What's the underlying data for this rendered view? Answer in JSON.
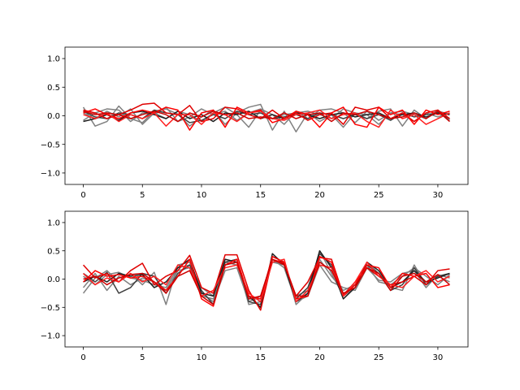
{
  "chart_data": [
    {
      "type": "line",
      "ylim": [
        -1.2,
        1.2
      ],
      "xlim": [
        -1.55,
        32.55
      ],
      "xticks": [
        0,
        5,
        10,
        15,
        20,
        25,
        30
      ],
      "yticks": [
        -1.0,
        -0.5,
        0.0,
        0.5,
        1.0
      ],
      "ytick_labels": [
        "−1.0",
        "−0.5",
        "0.0",
        "0.5",
        "1.0"
      ],
      "grid": false,
      "x": [
        0,
        1,
        2,
        3,
        4,
        5,
        6,
        7,
        8,
        9,
        10,
        11,
        12,
        13,
        14,
        15,
        16,
        17,
        18,
        19,
        20,
        21,
        22,
        23,
        24,
        25,
        26,
        27,
        28,
        29,
        30,
        31
      ],
      "series": [
        {
          "color": "#808080",
          "values": [
            0.15,
            -0.18,
            -0.1,
            0.17,
            -0.05,
            -0.12,
            0.08,
            0.12,
            0.03,
            -0.18,
            -0.02,
            0.1,
            -0.15,
            0.05,
            0.15,
            0.2,
            -0.25,
            0.08,
            -0.28,
            0.05,
            -0.1,
            0.02,
            -0.2,
            0.05,
            -0.05,
            0.08,
            0.12,
            -0.18,
            0.1,
            -0.05,
            0.08,
            0.03
          ]
        },
        {
          "color": "#808080",
          "values": [
            -0.08,
            0.05,
            0.12,
            0.1,
            -0.1,
            0.05,
            0.02,
            0.15,
            -0.1,
            -0.02,
            0.12,
            0.02,
            0.08,
            -0.08,
            0.05,
            0.12,
            0.02,
            -0.15,
            0.08,
            -0.05,
            0.1,
            0.12,
            0.05,
            -0.12,
            0.08,
            -0.08,
            0.05,
            0.02,
            -0.1,
            0.05,
            -0.02,
            0.05
          ]
        },
        {
          "color": "#808080",
          "values": [
            0.05,
            -0.05,
            0.08,
            -0.02,
            0.12,
            -0.15,
            0.05,
            -0.05,
            0.08,
            0.02,
            -0.1,
            0.05,
            0.15,
            0.02,
            -0.2,
            0.1,
            -0.05,
            0.02,
            0.05,
            0.08,
            0.02,
            -0.05,
            0.12,
            0.05,
            0.02,
            -0.15,
            0.05,
            0.08,
            0.02,
            -0.05,
            0.1,
            -0.08
          ]
        },
        {
          "color": "#404040",
          "values": [
            0.08,
            -0.02,
            -0.05,
            0.05,
            0.02,
            -0.05,
            0.1,
            0.05,
            0.02,
            -0.12,
            -0.08,
            0.02,
            -0.05,
            0.08,
            0.02,
            0.05,
            -0.05,
            -0.02,
            0.02,
            -0.05,
            0.05,
            0.02,
            -0.05,
            0.02,
            -0.05,
            0.02,
            -0.08,
            0.05,
            -0.02,
            0.02,
            0.05,
            -0.05
          ]
        },
        {
          "color": "#202020",
          "values": [
            -0.1,
            -0.05,
            0.02,
            -0.08,
            0.05,
            0.08,
            0.02,
            -0.05,
            0.08,
            -0.05,
            0.02,
            -0.1,
            0.05,
            0.02,
            0.08,
            -0.05,
            0.02,
            -0.05,
            0.05,
            0.02,
            -0.05,
            0.02,
            0.05,
            -0.02,
            0.02,
            0.05,
            -0.05,
            0.02,
            0.05,
            -0.02,
            0.05,
            0.02
          ]
        },
        {
          "color": "#e00000",
          "values": [
            0.1,
            0.05,
            -0.05,
            0.02,
            0.1,
            0.2,
            0.22,
            0.05,
            0.02,
            0.18,
            -0.1,
            -0.05,
            0.15,
            0.12,
            0.02,
            -0.05,
            0.1,
            -0.05,
            0.05,
            -0.08,
            0.02,
            0.05,
            -0.15,
            0.15,
            0.1,
            0.15,
            -0.05,
            0.05,
            -0.1,
            0.05,
            0.1,
            -0.05
          ]
        },
        {
          "color": "#ff0000",
          "values": [
            0.05,
            0.12,
            0.02,
            -0.05,
            0.05,
            0.1,
            0.05,
            0.15,
            0.1,
            -0.25,
            0.05,
            0.1,
            -0.2,
            0.15,
            0.05,
            0.1,
            -0.12,
            -0.05,
            0.08,
            0.02,
            -0.2,
            0.05,
            0.15,
            -0.15,
            -0.2,
            0.15,
            0.02,
            0.1,
            -0.15,
            0.1,
            0.02,
            0.08
          ]
        },
        {
          "color": "#ff2020",
          "values": [
            0.02,
            -0.05,
            0.05,
            -0.1,
            0.02,
            -0.05,
            0.05,
            -0.18,
            0.02,
            0.02,
            -0.15,
            0.05,
            0.02,
            -0.1,
            0.05,
            0.08,
            -0.05,
            -0.08,
            0.02,
            0.05,
            0.1,
            -0.05,
            0.02,
            0.05,
            -0.1,
            -0.2,
            0.1,
            -0.05,
            0.02,
            -0.15,
            -0.05,
            0.05
          ]
        },
        {
          "color": "#cc0000",
          "values": [
            0.08,
            0.02,
            0.05,
            0.02,
            -0.05,
            0.02,
            0.08,
            0.02,
            -0.1,
            0.05,
            -0.02,
            0.08,
            0.02,
            0.05,
            -0.05,
            -0.02,
            -0.05,
            0.05,
            -0.05,
            0.02,
            0.05,
            -0.1,
            0.05,
            0.02,
            0.08,
            0.02,
            -0.05,
            -0.02,
            0.05,
            -0.05,
            0.08,
            -0.1
          ]
        }
      ]
    },
    {
      "type": "line",
      "ylim": [
        -1.2,
        1.2
      ],
      "xlim": [
        -1.55,
        32.55
      ],
      "xticks": [
        0,
        5,
        10,
        15,
        20,
        25,
        30
      ],
      "yticks": [
        -1.0,
        -0.5,
        0.0,
        0.5,
        1.0
      ],
      "ytick_labels": [
        "−1.0",
        "−0.5",
        "0.0",
        "0.5",
        "1.0"
      ],
      "grid": false,
      "x": [
        0,
        1,
        2,
        3,
        4,
        5,
        6,
        7,
        8,
        9,
        10,
        11,
        12,
        13,
        14,
        15,
        16,
        17,
        18,
        19,
        20,
        21,
        22,
        23,
        24,
        25,
        26,
        27,
        28,
        29,
        30,
        31
      ],
      "series": [
        {
          "color": "#808080",
          "values": [
            -0.25,
            0.02,
            0.15,
            -0.05,
            0.1,
            -0.1,
            0.12,
            -0.45,
            0.25,
            0.3,
            -0.3,
            -0.35,
            0.25,
            0.3,
            -0.45,
            -0.4,
            0.4,
            0.3,
            -0.45,
            -0.25,
            0.5,
            0.1,
            -0.3,
            -0.15,
            0.3,
            0.1,
            -0.15,
            -0.2,
            0.25,
            -0.1,
            0.05,
            -0.05
          ]
        },
        {
          "color": "#808080",
          "values": [
            0.05,
            -0.1,
            0.08,
            0.12,
            0.02,
            -0.02,
            -0.1,
            -0.15,
            0.2,
            0.25,
            -0.15,
            -0.3,
            0.3,
            0.25,
            -0.35,
            -0.35,
            0.3,
            0.25,
            -0.3,
            -0.2,
            0.35,
            0.05,
            -0.2,
            -0.1,
            0.25,
            -0.05,
            -0.1,
            0.05,
            0.2,
            0.05,
            -0.1,
            0.08
          ]
        },
        {
          "color": "#808080",
          "values": [
            -0.15,
            0.1,
            -0.2,
            0.05,
            -0.1,
            0.02,
            -0.05,
            -0.2,
            0.15,
            0.2,
            -0.25,
            -0.4,
            0.15,
            0.2,
            -0.4,
            -0.3,
            0.35,
            0.2,
            -0.4,
            -0.3,
            0.25,
            -0.05,
            -0.15,
            -0.2,
            0.2,
            -0.02,
            -0.05,
            0.1,
            0.15,
            -0.15,
            0.08,
            0.02
          ]
        },
        {
          "color": "#404040",
          "values": [
            0.1,
            -0.05,
            0.12,
            -0.25,
            -0.15,
            0.1,
            0.05,
            -0.25,
            0.1,
            0.25,
            -0.2,
            -0.45,
            0.3,
            0.35,
            -0.4,
            -0.45,
            0.4,
            0.3,
            -0.35,
            -0.15,
            0.45,
            0.25,
            -0.3,
            -0.1,
            0.25,
            0.1,
            -0.2,
            -0.1,
            0.2,
            -0.1,
            0.05,
            0.1
          ]
        },
        {
          "color": "#202020",
          "values": [
            -0.05,
            0.05,
            -0.05,
            0.1,
            0.05,
            0.08,
            -0.15,
            -0.05,
            0.2,
            0.35,
            -0.25,
            -0.3,
            0.35,
            0.3,
            -0.3,
            -0.5,
            0.45,
            0.25,
            -0.4,
            -0.25,
            0.5,
            0.2,
            -0.35,
            -0.15,
            0.3,
            0.15,
            -0.15,
            -0.05,
            0.15,
            -0.05,
            0.02,
            0.1
          ]
        },
        {
          "color": "#e00000",
          "values": [
            0.25,
            0.02,
            0.1,
            -0.05,
            0.15,
            0.28,
            -0.1,
            0.05,
            0.15,
            0.42,
            -0.15,
            -0.25,
            0.43,
            0.43,
            -0.2,
            -0.55,
            0.35,
            0.28,
            -0.3,
            -0.05,
            0.38,
            0.35,
            -0.28,
            -0.05,
            0.2,
            0.05,
            -0.1,
            -0.05,
            0.05,
            -0.1,
            0.15,
            0.18
          ]
        },
        {
          "color": "#ff0000",
          "values": [
            -0.05,
            0.15,
            0.05,
            0.08,
            0.02,
            0.05,
            -0.05,
            -0.2,
            0.05,
            0.35,
            -0.35,
            -0.48,
            0.25,
            0.35,
            -0.3,
            -0.35,
            0.4,
            0.3,
            -0.35,
            -0.3,
            0.4,
            0.3,
            -0.3,
            -0.1,
            0.25,
            0.2,
            -0.15,
            0.1,
            0.05,
            0.1,
            -0.15,
            -0.1
          ]
        },
        {
          "color": "#ff2020",
          "values": [
            0.1,
            -0.1,
            0.02,
            -0.05,
            0.1,
            -0.05,
            0.05,
            -0.1,
            0.25,
            0.2,
            -0.3,
            -0.2,
            0.2,
            0.25,
            -0.25,
            -0.4,
            0.3,
            0.35,
            -0.4,
            -0.2,
            0.25,
            0.2,
            -0.3,
            -0.05,
            0.3,
            0.05,
            -0.1,
            -0.15,
            0.05,
            0.15,
            -0.05,
            0.05
          ]
        },
        {
          "color": "#cc0000",
          "values": [
            0.0,
            0.05,
            -0.1,
            0.02,
            0.08,
            0.1,
            -0.05,
            -0.25,
            0.05,
            0.15,
            -0.3,
            -0.45,
            0.25,
            0.3,
            -0.35,
            -0.3,
            0.35,
            0.25,
            -0.3,
            -0.3,
            0.3,
            0.15,
            -0.25,
            -0.15,
            0.2,
            0.1,
            -0.2,
            0.05,
            0.1,
            -0.05,
            0.08,
            -0.1
          ]
        }
      ]
    }
  ]
}
